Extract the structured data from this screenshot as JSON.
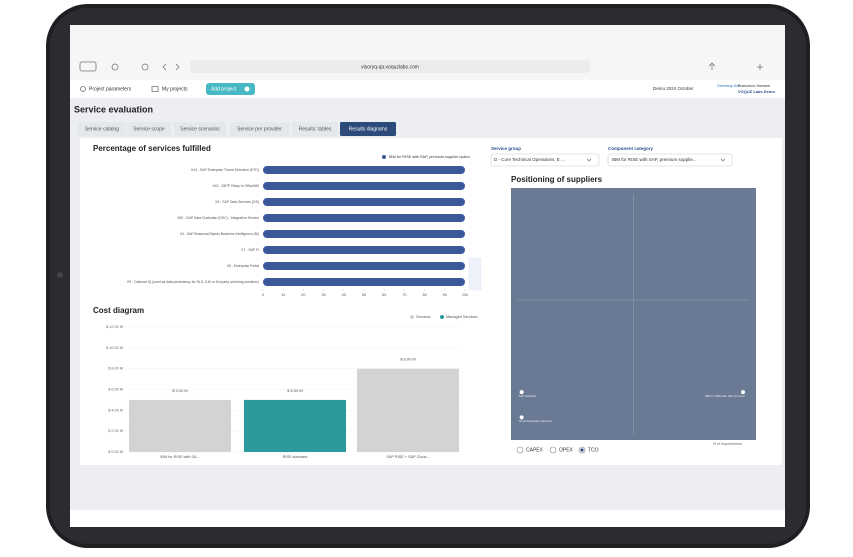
{
  "browser": {
    "url": "visoryq-qa.voquzlabs.com"
  },
  "nav": {
    "project_parameters": "Project parameters",
    "my_projects": "My projects",
    "add_project": "Add project",
    "period": "Demo 2024 October",
    "unit": "Germany Unit",
    "user": "Francisco Hansen",
    "org": "VOQUZ Labs Demo"
  },
  "page": {
    "title": "Service evaluation",
    "tabs": [
      "Service catalog",
      "Service scope",
      "Service scenarios",
      "Service per provider",
      "Results: tables",
      "Results diagrams"
    ],
    "active_tab": 5
  },
  "filters": {
    "service_group": {
      "label": "Service group",
      "value": "D - Core Technical Operations, E ..."
    },
    "component_category": {
      "label": "Component category",
      "value": "IBM for RISE with SAP, premium supplie..."
    }
  },
  "charts": [
    {
      "type": "hbar",
      "title": "Percentage of services fulfilled",
      "categories": [
        "X44 - SAP Enterprise Threat Detection (ETD)",
        "X43 - SBTP Relay to Office365",
        "X3 - SAP Data Services (DS)",
        "X50 - SAP Data Custodian (DSC) - Integration Service",
        "X4 - SAP BusinessObjects Business Intelligence (BI)",
        "X7 - SAP FI",
        "X8 - Enterprise Portal",
        "X9 - Optional IQ (used as data persistency for NLS, ILM or 3rd party archiving solutions)"
      ],
      "series": [
        {
          "name": "IBM for RISE with SAP, premium supplier option",
          "color": "#3b5998",
          "values": [
            100,
            100,
            100,
            100,
            100,
            100,
            100,
            100
          ]
        }
      ],
      "xlim": [
        0,
        100
      ],
      "xticks": [
        0,
        10,
        20,
        30,
        40,
        50,
        60,
        70,
        80,
        90,
        100
      ]
    },
    {
      "type": "stacked_bar",
      "title": "Cost diagram",
      "categories": [
        "IBM for RISE with SA...",
        "RISE standard",
        "SAP RISE + SAP Cloud..."
      ],
      "series": [
        {
          "name": "Services",
          "color": "#d3d3d3",
          "values": [
            5,
            0,
            8
          ],
          "value_labels": [
            "$ 5.00 M",
            null,
            "$ 8.00 M"
          ]
        },
        {
          "name": "Managed Services",
          "color": "#2a9a9c",
          "values": [
            0,
            5,
            0
          ],
          "value_labels": [
            null,
            "$ 5.00 M",
            null
          ]
        }
      ],
      "ylim": [
        0,
        12
      ],
      "yticks": [
        {
          "value": 0,
          "label": "$ 0.00 M"
        },
        {
          "value": 2,
          "label": "$ 2.00 M"
        },
        {
          "value": 4,
          "label": "$ 4.00 M"
        },
        {
          "value": 6,
          "label": "$ 6.00 M"
        },
        {
          "value": 8,
          "label": "$ 8.00 M"
        },
        {
          "value": 10,
          "label": "$ 10.00 M"
        },
        {
          "value": 12,
          "label": "$ 12.00 M"
        }
      ]
    },
    {
      "type": "scatter",
      "title": "Positioning of suppliers",
      "xlabel": "% of requirements",
      "color": "#6b7a94",
      "labels": [
        "SAP standard",
        "IBM for RISE with SAP premium",
        "Cloud Application Services"
      ],
      "x": [
        2,
        97,
        2
      ],
      "values": [
        19,
        19,
        9
      ],
      "xlim": [
        0,
        100
      ],
      "ylim": [
        0,
        100
      ]
    }
  ],
  "cost_options": {
    "options": [
      "CAPEX",
      "OPEX",
      "TCO"
    ],
    "selected": 2
  }
}
